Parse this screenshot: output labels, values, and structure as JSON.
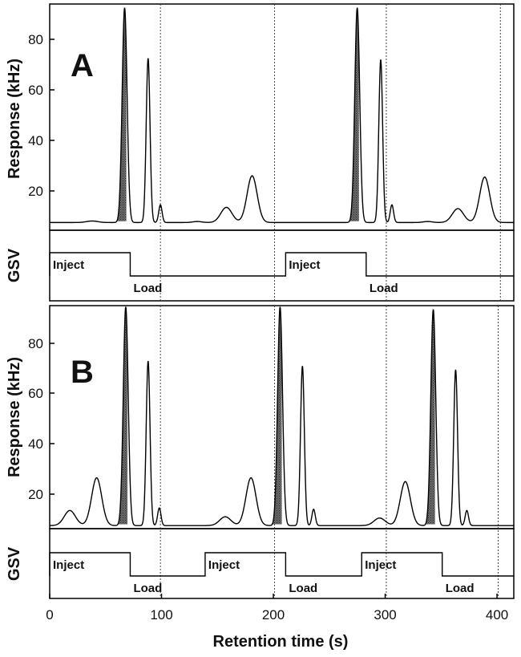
{
  "figure": {
    "xlabel": "Retention time (s)",
    "xticks": [
      "0",
      "100",
      "200",
      "300",
      "400"
    ],
    "xrange": [
      0,
      415
    ]
  },
  "chart_data": [
    {
      "type": "line",
      "panel": "A",
      "panel_label": "A",
      "ylabel": "Response (kHz)",
      "yticks": [
        "20",
        "40",
        "60",
        "80"
      ],
      "ylim": [
        7,
        95
      ],
      "baseline": 7.5,
      "peaks": [
        {
          "x": 38,
          "height": 0.6,
          "sigma": 5,
          "shaded": false
        },
        {
          "x": 67,
          "height": 85,
          "sigma": 2.2,
          "shaded": true
        },
        {
          "x": 88,
          "height": 65,
          "sigma": 1.7,
          "shaded": false
        },
        {
          "x": 99,
          "height": 7,
          "sigma": 1.5,
          "shaded": false
        },
        {
          "x": 132,
          "height": 0.4,
          "sigma": 4,
          "shaded": false
        },
        {
          "x": 158,
          "height": 6,
          "sigma": 5,
          "shaded": false
        },
        {
          "x": 181,
          "height": 18.5,
          "sigma": 4.5,
          "shaded": false
        },
        {
          "x": 275,
          "height": 85,
          "sigma": 2.2,
          "shaded": true
        },
        {
          "x": 296,
          "height": 64.5,
          "sigma": 1.7,
          "shaded": false
        },
        {
          "x": 306,
          "height": 7,
          "sigma": 1.5,
          "shaded": false
        },
        {
          "x": 338,
          "height": 0.4,
          "sigma": 4,
          "shaded": false
        },
        {
          "x": 365,
          "height": 5.5,
          "sigma": 5,
          "shaded": false
        },
        {
          "x": 389,
          "height": 18,
          "sigma": 4.5,
          "shaded": false
        }
      ],
      "markers": [
        99,
        201,
        301,
        403
      ],
      "gsv": {
        "label": "GSV",
        "segments": [
          {
            "label": "Inject",
            "start": 0,
            "end": 72
          },
          {
            "label": "Load",
            "start": 72,
            "end": 211
          },
          {
            "label": "Inject",
            "start": 211,
            "end": 283
          },
          {
            "label": "Load",
            "start": 283,
            "end": 415
          }
        ]
      }
    },
    {
      "type": "line",
      "panel": "B",
      "panel_label": "B",
      "ylabel": "Response (kHz)",
      "yticks": [
        "20",
        "40",
        "60",
        "80"
      ],
      "ylim": [
        7,
        95
      ],
      "baseline": 7.5,
      "peaks": [
        {
          "x": 18,
          "height": 6,
          "sigma": 5,
          "shaded": false
        },
        {
          "x": 42,
          "height": 19,
          "sigma": 4.5,
          "shaded": false
        },
        {
          "x": 68,
          "height": 87,
          "sigma": 2.2,
          "shaded": true
        },
        {
          "x": 88,
          "height": 65.5,
          "sigma": 1.7,
          "shaded": false
        },
        {
          "x": 98,
          "height": 7,
          "sigma": 1.5,
          "shaded": false
        },
        {
          "x": 157,
          "height": 3.5,
          "sigma": 5,
          "shaded": false
        },
        {
          "x": 180,
          "height": 19,
          "sigma": 4.5,
          "shaded": false
        },
        {
          "x": 206,
          "height": 87,
          "sigma": 2.2,
          "shaded": true
        },
        {
          "x": 226,
          "height": 63.5,
          "sigma": 1.7,
          "shaded": false
        },
        {
          "x": 236,
          "height": 6.5,
          "sigma": 1.5,
          "shaded": false
        },
        {
          "x": 295,
          "height": 3,
          "sigma": 5,
          "shaded": false
        },
        {
          "x": 318,
          "height": 17.5,
          "sigma": 4.5,
          "shaded": false
        },
        {
          "x": 343,
          "height": 86,
          "sigma": 2.2,
          "shaded": true
        },
        {
          "x": 363,
          "height": 62,
          "sigma": 1.7,
          "shaded": false
        },
        {
          "x": 373,
          "height": 6,
          "sigma": 1.5,
          "shaded": false
        }
      ],
      "markers": [
        99,
        201,
        301,
        401
      ],
      "gsv": {
        "label": "GSV",
        "segments": [
          {
            "label": "Inject",
            "start": 0,
            "end": 72
          },
          {
            "label": "Load",
            "start": 72,
            "end": 139
          },
          {
            "label": "Inject",
            "start": 139,
            "end": 211
          },
          {
            "label": "Load",
            "start": 211,
            "end": 279
          },
          {
            "label": "Inject",
            "start": 279,
            "end": 351
          },
          {
            "label": "Load",
            "start": 351,
            "end": 415
          }
        ]
      }
    }
  ]
}
